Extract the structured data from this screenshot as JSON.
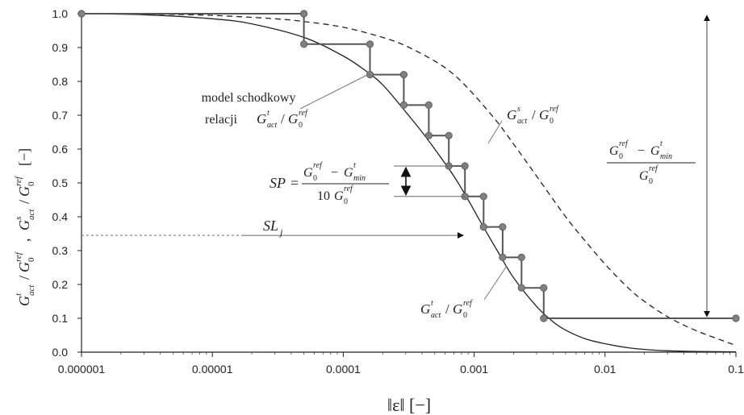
{
  "chart_data": {
    "type": "line",
    "x_scale": "log",
    "xlim": [
      1e-06,
      0.1
    ],
    "ylim": [
      0.0,
      1.0
    ],
    "x_ticks": [
      "0.000001",
      "0.00001",
      "0.0001",
      "0.001",
      "0.01",
      "0.1"
    ],
    "x_tick_values": [
      1e-06,
      1e-05,
      0.0001,
      0.001,
      0.01,
      0.1
    ],
    "y_ticks": [
      "0.0",
      "0.1",
      "0.2",
      "0.3",
      "0.4",
      "0.5",
      "0.6",
      "0.7",
      "0.8",
      "0.9",
      "1.0"
    ],
    "y_tick_values": [
      0.0,
      0.1,
      0.2,
      0.3,
      0.4,
      0.5,
      0.6,
      0.7,
      0.8,
      0.9,
      1.0
    ],
    "xlabel": "‖ε‖ [−]",
    "ylabel_parts": {
      "t": "t",
      "s": "s",
      "act": "act",
      "ref": "ref",
      "sep": ",",
      "unit": "[−]"
    },
    "grid": false,
    "series": [
      {
        "name": "G^t_act/G_0^ref",
        "style": "solid",
        "color": "#222222",
        "x": [
          1e-06,
          3e-06,
          1e-05,
          2e-05,
          5e-05,
          0.0001,
          0.00015,
          0.0002,
          0.0003,
          0.0004,
          0.0005,
          0.0007,
          0.0009,
          0.0011,
          0.0015,
          0.002,
          0.003,
          0.004,
          0.005,
          0.007,
          0.01,
          0.015,
          0.02,
          0.03,
          0.05,
          0.1
        ],
        "y": [
          1.0,
          0.997,
          0.985,
          0.97,
          0.93,
          0.875,
          0.83,
          0.79,
          0.71,
          0.65,
          0.6,
          0.52,
          0.45,
          0.39,
          0.3,
          0.22,
          0.135,
          0.09,
          0.065,
          0.04,
          0.025,
          0.013,
          0.008,
          0.004,
          0.002,
          0.001
        ]
      },
      {
        "name": "G^s_act/G_0^ref",
        "style": "dashed",
        "color": "#222222",
        "x": [
          1e-06,
          3e-06,
          1e-05,
          3e-05,
          5e-05,
          0.0001,
          0.0002,
          0.0003,
          0.0005,
          0.0007,
          0.001,
          0.0015,
          0.002,
          0.003,
          0.005,
          0.007,
          0.01,
          0.015,
          0.02,
          0.03,
          0.05,
          0.1
        ],
        "y": [
          1.0,
          0.999,
          0.995,
          0.985,
          0.977,
          0.96,
          0.93,
          0.905,
          0.86,
          0.82,
          0.76,
          0.68,
          0.615,
          0.52,
          0.4,
          0.33,
          0.26,
          0.19,
          0.15,
          0.105,
          0.063,
          0.02
        ]
      },
      {
        "name": "model schodkowy",
        "style": "step",
        "color": "#555555",
        "marker_color": "#808080",
        "steps_x": [
          1e-06,
          5e-05,
          0.00016,
          0.00029,
          0.00045,
          0.00064,
          0.00085,
          0.00118,
          0.00165,
          0.0023,
          0.0034,
          0.1
        ],
        "levels": [
          1.0,
          0.91,
          0.82,
          0.73,
          0.64,
          0.55,
          0.46,
          0.37,
          0.28,
          0.19,
          0.1
        ]
      }
    ],
    "annotations": {
      "model_line1": "model schodkowy",
      "model_line2": "relacji",
      "SP_label": "SP",
      "SP_eq": "=",
      "SP_denom_prefix": "10",
      "SL_label": "SL",
      "SL_sub": "j",
      "min": "min",
      "minus": "−",
      "ref": "ref",
      "act": "act",
      "t": "t",
      "s": "s",
      "SP_level_top": 0.55,
      "SP_level_bottom": 0.46,
      "SL_level": 0.345,
      "SL_x_end": 0.00085,
      "range_x": 0.06,
      "range_top": 1.0,
      "range_bottom": 0.1
    }
  }
}
